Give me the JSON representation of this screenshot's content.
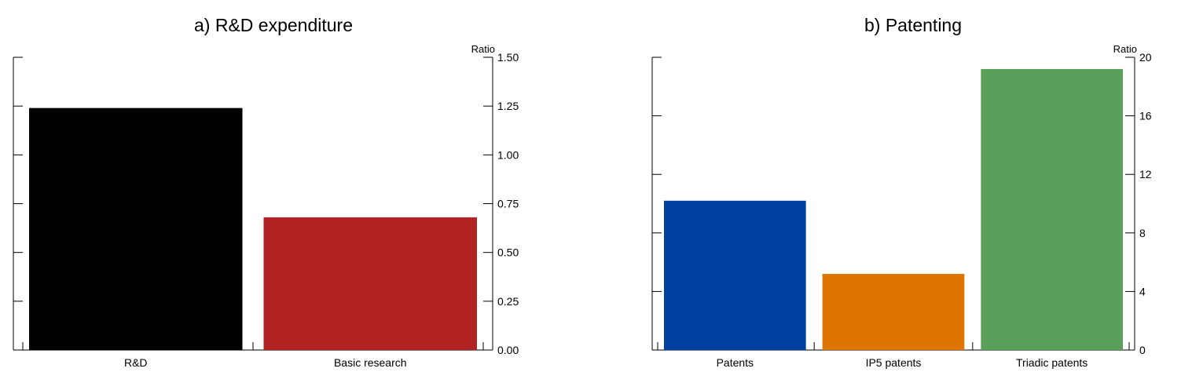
{
  "chart_data": [
    {
      "type": "bar",
      "title": "a) R&D expenditure",
      "ylabel": "Ratio",
      "ylim": [
        0,
        1.5
      ],
      "yticks": [
        "0.00",
        "0.25",
        "0.50",
        "0.75",
        "1.00",
        "1.25",
        "1.50"
      ],
      "grid": false,
      "categories": [
        "R&D",
        "Basic research"
      ],
      "values": [
        1.24,
        0.68
      ],
      "colors": [
        "#000000",
        "#b22222"
      ]
    },
    {
      "type": "bar",
      "title": "b) Patenting",
      "ylabel": "Ratio",
      "ylim": [
        0,
        20
      ],
      "yticks": [
        "0",
        "4",
        "8",
        "12",
        "16",
        "20"
      ],
      "grid": false,
      "categories": [
        "Patents",
        "IP5 patents",
        "Triadic patents"
      ],
      "values": [
        10.2,
        5.2,
        19.2
      ],
      "colors": [
        "#0040a0",
        "#dd7500",
        "#5aa05a"
      ]
    }
  ]
}
